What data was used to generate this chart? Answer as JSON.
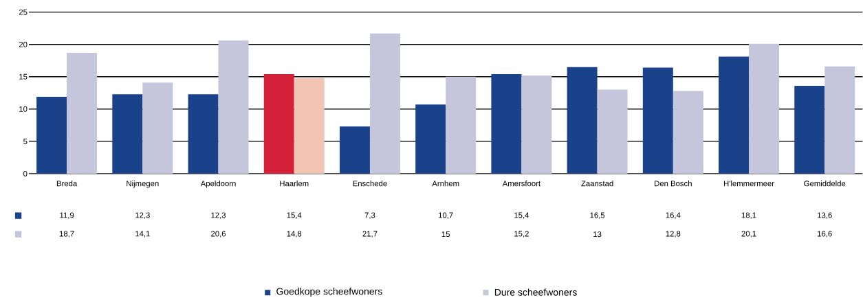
{
  "chart_data": {
    "type": "bar",
    "categories": [
      "Breda",
      "Nijmegen",
      "Apeldoorn",
      "Haarlem",
      "Enschede",
      "Arnhem",
      "Amersfoort",
      "Zaanstad",
      "Den Bosch",
      "H'lemmermeer",
      "Gemiddelde"
    ],
    "series": [
      {
        "name": "Goedkope scheefwoners",
        "color": "#1a428a",
        "colors": [
          "#1a428a",
          "#1a428a",
          "#1a428a",
          "#d42038",
          "#1a428a",
          "#1a428a",
          "#1a428a",
          "#1a428a",
          "#1a428a",
          "#1a428a",
          "#1a428a"
        ],
        "values": [
          11.9,
          12.3,
          12.3,
          15.4,
          7.3,
          10.7,
          15.4,
          16.5,
          16.4,
          18.1,
          13.6
        ],
        "value_labels": [
          "11,9",
          "12,3",
          "12,3",
          "15,4",
          "7,3",
          "10,7",
          "15,4",
          "16,5",
          "16,4",
          "18,1",
          "13,6"
        ]
      },
      {
        "name": "Dure scheefwoners",
        "color": "#c5c6dc",
        "colors": [
          "#c5c6dc",
          "#c5c6dc",
          "#c5c6dc",
          "#f2c4b4",
          "#c5c6dc",
          "#c5c6dc",
          "#c5c6dc",
          "#c5c6dc",
          "#c5c6dc",
          "#c5c6dc",
          "#c5c6dc"
        ],
        "values": [
          18.7,
          14.1,
          20.6,
          14.8,
          21.7,
          15,
          15.2,
          13,
          12.8,
          20.1,
          16.6
        ],
        "value_labels": [
          "18,7",
          "14,1",
          "20,6",
          "14,8",
          "21,7",
          "15",
          "15,2",
          "13",
          "12,8",
          "20,1",
          "16,6"
        ]
      }
    ],
    "ylim": [
      0,
      25
    ],
    "yticks": [
      0,
      5,
      10,
      15,
      20,
      25
    ],
    "grid": "y",
    "legend": "bottom"
  }
}
